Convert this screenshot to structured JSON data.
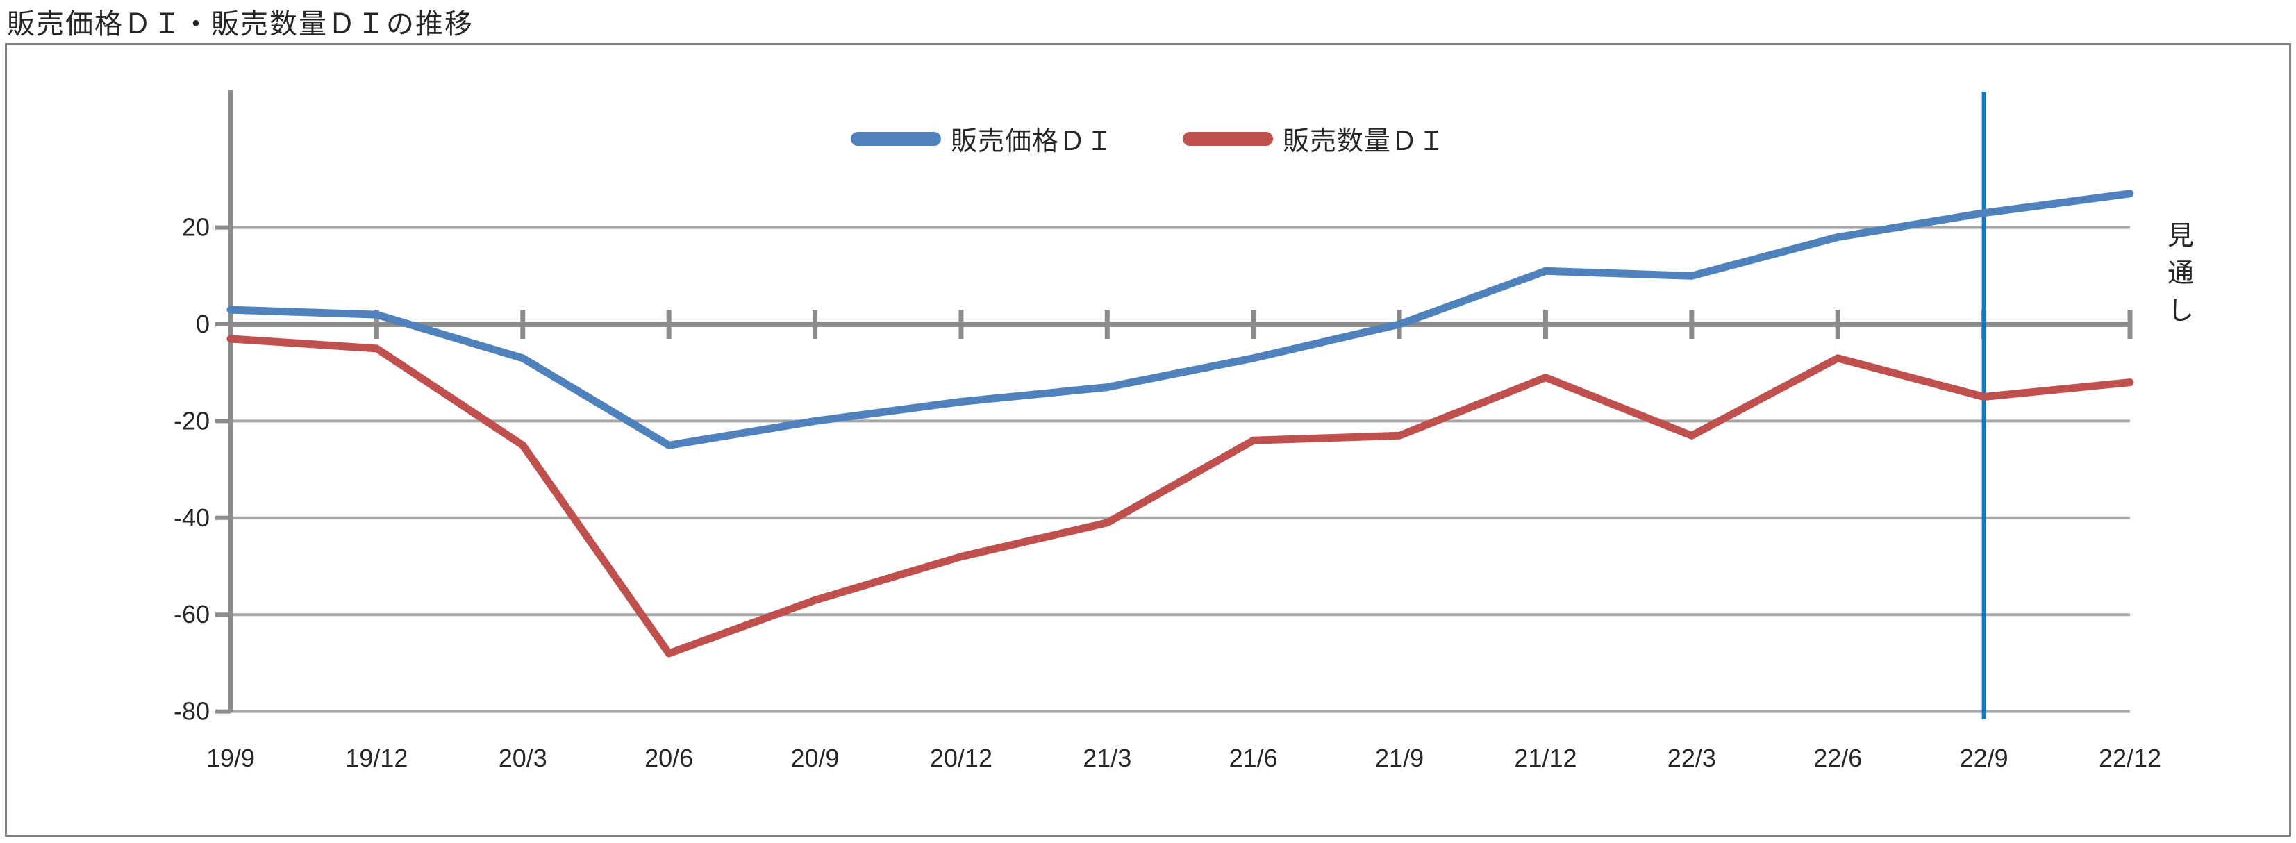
{
  "page_title": "販売価格ＤＩ・販売数量ＤＩの推移",
  "chart_data": {
    "type": "line",
    "title": "販売価格ＤＩ・販売数量ＤＩの推移",
    "categories": [
      "19/9",
      "19/12",
      "20/3",
      "20/6",
      "20/9",
      "20/12",
      "21/3",
      "21/6",
      "21/9",
      "21/12",
      "22/3",
      "22/6",
      "22/9",
      "22/12"
    ],
    "series": [
      {
        "name": "販売価格ＤＩ",
        "color": "#4F81BD",
        "values": [
          3,
          2,
          -7,
          -25,
          -20,
          -16,
          -13,
          -7,
          0,
          11,
          10,
          18,
          23,
          27
        ]
      },
      {
        "name": "販売数量ＤＩ",
        "color": "#C0504D",
        "values": [
          -3,
          -5,
          -25,
          -68,
          -57,
          -48,
          -41,
          -24,
          -23,
          -11,
          -23,
          -7,
          -15,
          -12
        ]
      }
    ],
    "y_axis": {
      "ticks": [
        20,
        0,
        -20,
        -40,
        -60,
        -80
      ],
      "ylim": [
        -80,
        45
      ]
    },
    "x_axis_position_value": 0,
    "grid": true,
    "legend_position": "top-center",
    "annotations": {
      "forecast_label": "見通し",
      "forecast_divider_at_category": "22/9",
      "forecast_divider_color": "#1777BE"
    },
    "grid_color": "#A6A6A6",
    "axis_color": "#8C8C8C",
    "text_color": "#262626",
    "border_color": "#808080"
  }
}
